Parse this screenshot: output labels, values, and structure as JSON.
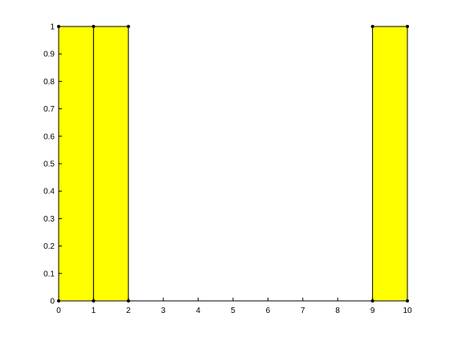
{
  "chart_data": {
    "type": "area",
    "title": "",
    "xlabel": "",
    "ylabel": "",
    "xlim": [
      0,
      10
    ],
    "ylim": [
      0,
      1
    ],
    "grid": false,
    "legend": "none",
    "xticks": [
      0,
      1,
      2,
      3,
      4,
      5,
      6,
      7,
      8,
      9,
      10
    ],
    "yticks": [
      0,
      0.1,
      0.2,
      0.3,
      0.4,
      0.5,
      0.6,
      0.7,
      0.8,
      0.9,
      1
    ],
    "xtick_labels": [
      "0",
      "1",
      "2",
      "3",
      "4",
      "5",
      "6",
      "7",
      "8",
      "9",
      "10"
    ],
    "ytick_labels": [
      "0",
      "0.1",
      "0.2",
      "0.3",
      "0.4",
      "0.5",
      "0.6",
      "0.7",
      "0.8",
      "0.9",
      "1"
    ],
    "regions": [
      {
        "x_start": 0,
        "x_end": 1,
        "y_low": 0,
        "y_high": 1
      },
      {
        "x_start": 1,
        "x_end": 2,
        "y_low": 0,
        "y_high": 1
      },
      {
        "x_start": 9,
        "x_end": 10,
        "y_low": 0,
        "y_high": 1
      }
    ],
    "vertex_markers": [
      {
        "x": 0,
        "y": 0
      },
      {
        "x": 0,
        "y": 1
      },
      {
        "x": 1,
        "y": 0
      },
      {
        "x": 1,
        "y": 1
      },
      {
        "x": 2,
        "y": 0
      },
      {
        "x": 2,
        "y": 1
      },
      {
        "x": 9,
        "y": 0
      },
      {
        "x": 9,
        "y": 1
      },
      {
        "x": 10,
        "y": 0
      },
      {
        "x": 10,
        "y": 1
      }
    ],
    "fill_color": "#ffff00",
    "edge_color": "#000000",
    "axis_color": "#000000"
  }
}
